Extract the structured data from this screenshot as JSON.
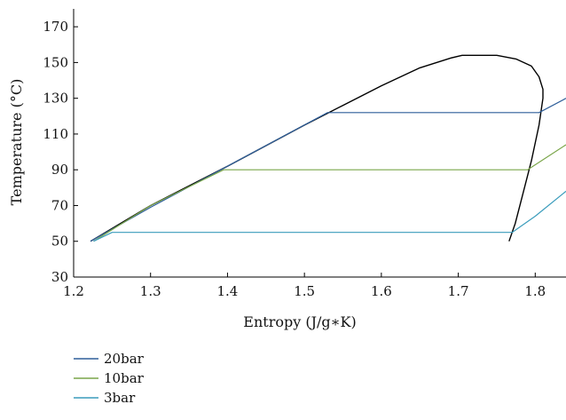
{
  "chart_data": {
    "type": "line",
    "title": "",
    "xlabel": "Entropy (J/g∗K)",
    "ylabel": "Temperature (°C)",
    "xlim": [
      1.2,
      1.84
    ],
    "ylim": [
      30,
      180
    ],
    "xticks": [
      1.2,
      1.3,
      1.4,
      1.5,
      1.6,
      1.7,
      1.8
    ],
    "xtick_labels": [
      "1.2",
      "1.3",
      "1.4",
      "1.5",
      "1.6",
      "1.7",
      "1.8"
    ],
    "yticks": [
      30,
      50,
      70,
      90,
      110,
      130,
      150,
      170
    ],
    "ytick_labels": [
      "30",
      "50",
      "70",
      "90",
      "110",
      "130",
      "150",
      "170"
    ],
    "grid": false,
    "legend_position": "bottom-left",
    "saturation_dome": {
      "color": "#000000",
      "x": [
        1.222,
        1.3,
        1.4,
        1.5,
        1.55,
        1.6,
        1.65,
        1.69,
        1.705,
        1.72,
        1.75,
        1.775,
        1.795,
        1.805,
        1.81,
        1.81,
        1.805,
        1.795,
        1.783,
        1.774,
        1.766
      ],
      "y": [
        50,
        70,
        92,
        115,
        126,
        137,
        147,
        152.5,
        154,
        154,
        154,
        152,
        148,
        142,
        135,
        130,
        115,
        95,
        75,
        60,
        50
      ]
    },
    "series": [
      {
        "name": "20bar",
        "color": "#2f5f9a",
        "x": [
          1.222,
          1.3,
          1.4,
          1.53,
          1.805,
          1.84
        ],
        "y": [
          50,
          69,
          92,
          122,
          122,
          130
        ]
      },
      {
        "name": "10bar",
        "color": "#7aa64a",
        "x": [
          1.226,
          1.3,
          1.395,
          1.79,
          1.84
        ],
        "y": [
          50,
          70,
          90,
          90,
          104
        ]
      },
      {
        "name": "3bar",
        "color": "#3a9cbc",
        "x": [
          1.226,
          1.25,
          1.77,
          1.8,
          1.84
        ],
        "y": [
          50,
          55,
          55,
          64,
          78
        ]
      }
    ],
    "legend": [
      {
        "label": "20bar",
        "color": "#2f5f9a"
      },
      {
        "label": "10bar",
        "color": "#7aa64a"
      },
      {
        "label": "3bar",
        "color": "#3a9cbc"
      }
    ]
  }
}
